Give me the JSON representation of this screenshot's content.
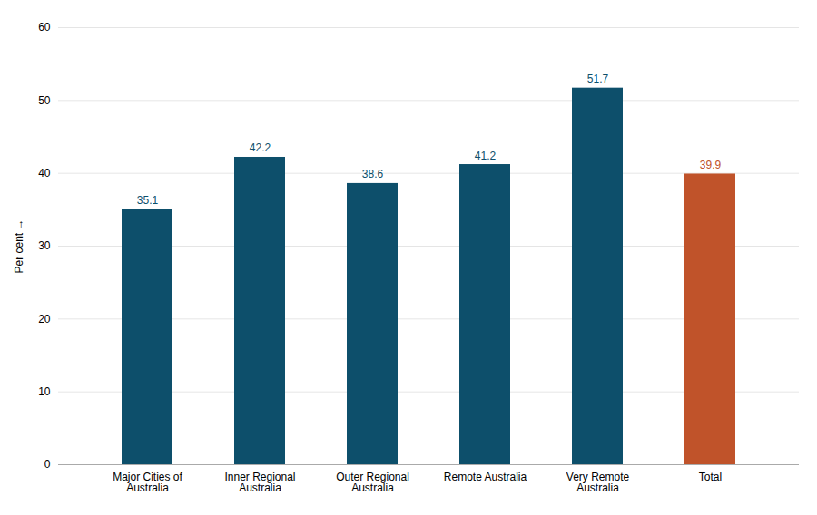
{
  "chart_data": {
    "type": "bar",
    "categories": [
      "Major Cities of\nAustralia",
      "Inner Regional\nAustralia",
      "Outer Regional\nAustralia",
      "Remote Australia",
      "Very Remote\nAustralia",
      "Total"
    ],
    "values": [
      35.1,
      42.2,
      38.6,
      41.2,
      51.7,
      39.9
    ],
    "colors": [
      "#0d4f6b",
      "#0d4f6b",
      "#0d4f6b",
      "#0d4f6b",
      "#0d4f6b",
      "#c0532a"
    ],
    "ylabel": "Per cent",
    "ylim": [
      0,
      60
    ],
    "yticks": [
      0,
      10,
      20,
      30,
      40,
      50,
      60
    ],
    "grid": true,
    "data_labels": true
  }
}
